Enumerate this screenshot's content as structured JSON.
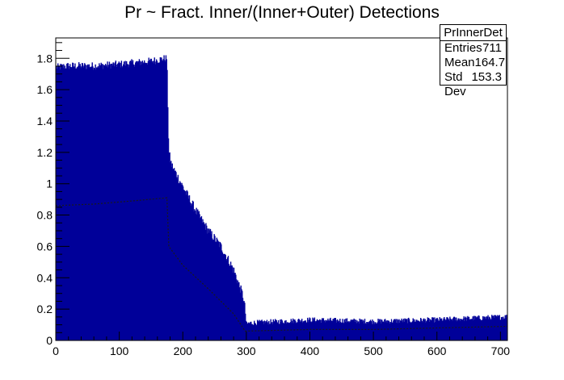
{
  "chart_data": {
    "type": "bar",
    "title": "Pr ~ Fract. Inner/(Inner+Outer) Detections",
    "xlabel": "",
    "ylabel": "",
    "xlim": [
      0,
      711
    ],
    "ylim": [
      0,
      1.93
    ],
    "bar_color": "#000099",
    "grid": false,
    "legend": "none",
    "x_ticks": [
      0,
      100,
      200,
      300,
      400,
      500,
      600,
      700
    ],
    "x_tick_labels": [
      "0",
      "100",
      "200",
      "300",
      "400",
      "500",
      "600",
      "700"
    ],
    "y_ticks": [
      0,
      0.2,
      0.4,
      0.6,
      0.8,
      1,
      1.2,
      1.4,
      1.6,
      1.8
    ],
    "y_tick_labels": [
      "0",
      "0.2",
      "0.4",
      "0.6",
      "0.8",
      "1",
      "1.2",
      "1.4",
      "1.6",
      "1.8"
    ],
    "profile": {
      "x": [
        0,
        20,
        60,
        100,
        150,
        175,
        178,
        182,
        200,
        220,
        240,
        260,
        280,
        295,
        298,
        300,
        305,
        400,
        500,
        600,
        711
      ],
      "y": [
        1.74,
        1.75,
        1.75,
        1.76,
        1.78,
        1.8,
        1.2,
        1.12,
        0.98,
        0.83,
        0.7,
        0.6,
        0.45,
        0.28,
        0.2,
        0.1,
        0.11,
        0.13,
        0.12,
        0.13,
        0.15
      ]
    },
    "overlay": {
      "x": [
        0,
        60,
        120,
        175,
        178,
        200,
        240,
        280,
        298,
        300,
        400,
        500,
        600,
        711
      ],
      "y": [
        0.86,
        0.87,
        0.89,
        0.91,
        0.6,
        0.48,
        0.33,
        0.17,
        0.06,
        0.06,
        0.07,
        0.07,
        0.08,
        0.09
      ]
    }
  },
  "statbox": {
    "name": "PrInnerDet",
    "rows": [
      {
        "label": "Entries",
        "value": "711"
      },
      {
        "label": "Mean",
        "value": "164.7"
      },
      {
        "label": "Std Dev",
        "value": "153.3"
      }
    ]
  }
}
